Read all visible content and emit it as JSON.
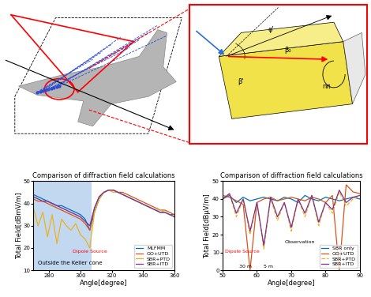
{
  "diagram": {
    "wedge_labels": [
      "β'",
      "φ'",
      "β₀",
      "nπ"
    ]
  },
  "chart_data": [
    {
      "type": "line",
      "title": "Comparison of diffraction field calculations",
      "x_label": "Angle[degree]",
      "y_label": "Total Field[dBmV/m]",
      "x": [
        270,
        273,
        276,
        279,
        282,
        285,
        288,
        291,
        294,
        297,
        300,
        303,
        306,
        309,
        312,
        315,
        318,
        321,
        324,
        327,
        330,
        333,
        336,
        339,
        342,
        345,
        348,
        351,
        354,
        357,
        360
      ],
      "xlim": [
        270,
        360
      ],
      "xticks": [
        280,
        300,
        320,
        340,
        360
      ],
      "ylim": [
        10,
        50
      ],
      "yticks": [
        10,
        20,
        30,
        40,
        50
      ],
      "legend": "lower right",
      "shaded_x": [
        270,
        307
      ],
      "annotations": [
        "Outside the Keller cone",
        "Dipole Source"
      ],
      "series": [
        {
          "name": "MLFMM",
          "color": "#0072bd",
          "line_style": "solid",
          "values": [
            44,
            43,
            42,
            41,
            40,
            39,
            39,
            38,
            37,
            36,
            35,
            33,
            28,
            36,
            42,
            45,
            46,
            46,
            45,
            44,
            43,
            42,
            41,
            40,
            39,
            38,
            37,
            36,
            36,
            35,
            35
          ]
        },
        {
          "name": "GO+UTD",
          "color": "#d95319",
          "line_style": "solid",
          "values": [
            42,
            41,
            41,
            40,
            39,
            38,
            37,
            36,
            35,
            34,
            33,
            31,
            28,
            38,
            43,
            45,
            46,
            46,
            45,
            45,
            44,
            43,
            42,
            41,
            40,
            39,
            38,
            37,
            37,
            36,
            35
          ]
        },
        {
          "name": "SBR+PTD",
          "color": "#edb120",
          "line_style": "solid",
          "values": [
            38,
            30,
            36,
            25,
            35,
            22,
            33,
            30,
            28,
            31,
            26,
            24,
            20,
            36,
            42,
            45,
            46,
            45,
            45,
            44,
            43,
            42,
            41,
            40,
            39,
            38,
            37,
            37,
            36,
            35,
            34
          ]
        },
        {
          "name": "SBR+ITD",
          "color": "#7e2f8e",
          "line_style": "solid",
          "values": [
            43,
            42,
            41,
            41,
            40,
            39,
            38,
            37,
            36,
            35,
            34,
            32,
            30,
            38,
            43,
            45,
            46,
            46,
            45,
            44,
            43,
            42,
            41,
            40,
            39,
            38,
            37,
            36,
            36,
            35,
            34
          ]
        }
      ]
    },
    {
      "type": "line",
      "title": "Comparison of diffraction field calculations",
      "x_label": "Angle[degree]",
      "y_label": "Total Field[dBμV/m]",
      "x": [
        50,
        52,
        54,
        56,
        58,
        60,
        62,
        64,
        66,
        68,
        70,
        72,
        74,
        76,
        78,
        80,
        82,
        84,
        86,
        88,
        90
      ],
      "xlim": [
        50,
        90
      ],
      "xticks": [
        50,
        60,
        70,
        80,
        90
      ],
      "ylim": [
        0,
        50
      ],
      "yticks": [
        0,
        10,
        20,
        30,
        40,
        50
      ],
      "legend": "lower right",
      "annotations": [
        "Dipole Source",
        "Observation",
        "30 m",
        "5 m"
      ],
      "series": [
        {
          "name": "SBR only",
          "color": "#0072bd",
          "line_style": "solid",
          "values": [
            40,
            42,
            38,
            41,
            39,
            40,
            41,
            40,
            39,
            41,
            40,
            38,
            42,
            40,
            39,
            41,
            40,
            39,
            40,
            41,
            40
          ]
        },
        {
          "name": "GO+UTD",
          "color": "#d95319",
          "line_style": "solid",
          "values": [
            42,
            41,
            39,
            37,
            0,
            38,
            40,
            41,
            39,
            40,
            41,
            40,
            39,
            41,
            40,
            38,
            42,
            0,
            48,
            44,
            43
          ]
        },
        {
          "name": "SBR+PTD",
          "color": "#edb120",
          "line_style": "dashed",
          "values": [
            40,
            43,
            30,
            40,
            20,
            38,
            12,
            40,
            28,
            38,
            22,
            40,
            30,
            42,
            25,
            38,
            32,
            44,
            36,
            40,
            42
          ]
        },
        {
          "name": "SBR+ITD",
          "color": "#7e2f8e",
          "line_style": "solid",
          "values": [
            40,
            43,
            32,
            40,
            22,
            38,
            14,
            41,
            30,
            38,
            24,
            40,
            32,
            42,
            27,
            38,
            34,
            45,
            38,
            41,
            42
          ]
        }
      ]
    }
  ]
}
